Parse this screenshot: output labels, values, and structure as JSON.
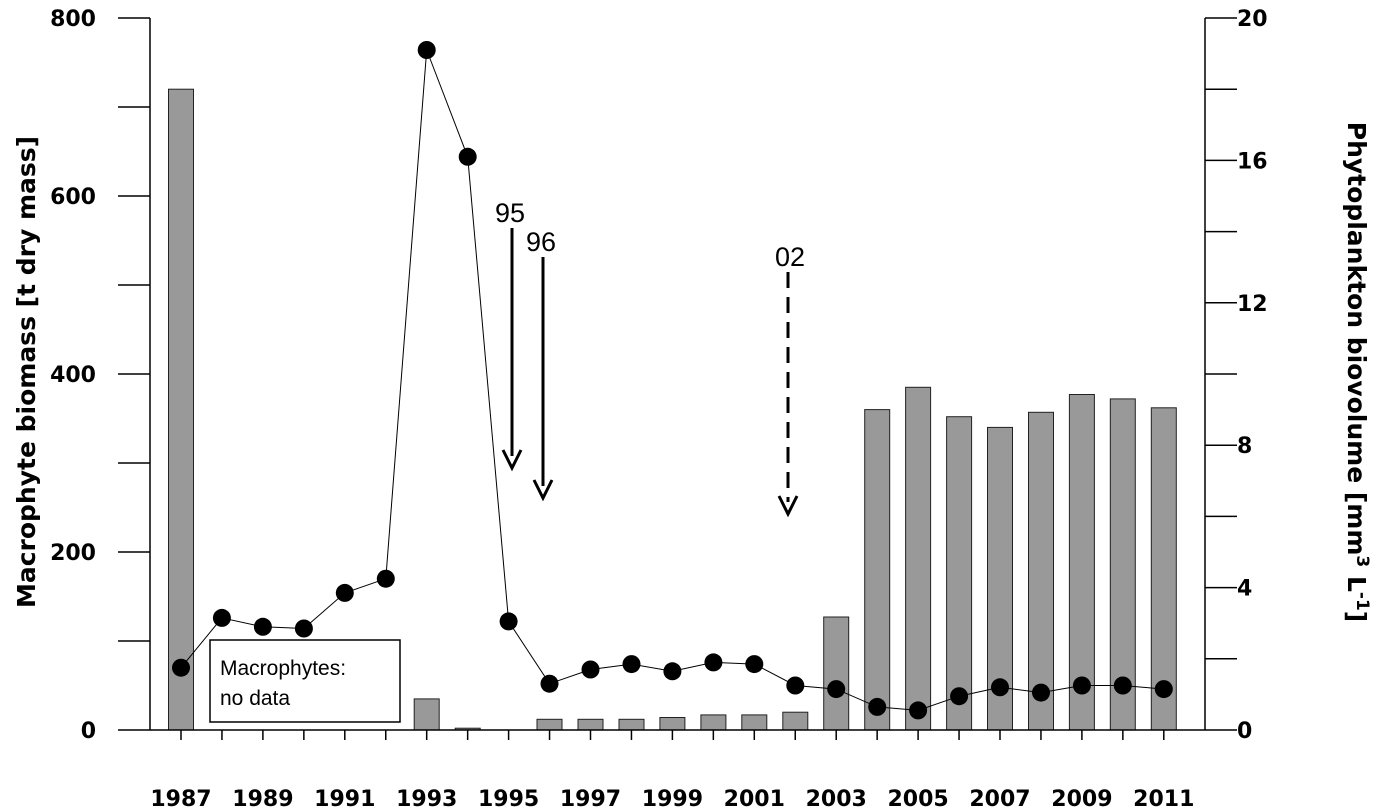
{
  "chart_data": {
    "type": "bar",
    "categories": [
      "1987",
      "1988",
      "1989",
      "1990",
      "1991",
      "1992",
      "1993",
      "1994",
      "1995",
      "1996",
      "1997",
      "1998",
      "1999",
      "2000",
      "2001",
      "2002",
      "2003",
      "2004",
      "2005",
      "2006",
      "2007",
      "2008",
      "2009",
      "2010",
      "2011"
    ],
    "x_tick_labels": [
      "1987",
      "1989",
      "1991",
      "1993",
      "1995",
      "1997",
      "1999",
      "2001",
      "2003",
      "2005",
      "2007",
      "2009",
      "2011"
    ],
    "ylabel": "Macrophyte biomass [t dry mass]",
    "y2label_main": "Phytoplankton biovolume [mm",
    "y2label_sup1": "3",
    "y2label_mid": " L",
    "y2label_sup2": "-1",
    "y2label_end": "]",
    "ylim": [
      0,
      800
    ],
    "y_ticks": [
      0,
      200,
      400,
      600,
      800
    ],
    "y2lim": [
      0,
      20
    ],
    "y2_ticks": [
      0,
      4,
      8,
      12,
      16,
      20
    ],
    "grid": false,
    "series": [
      {
        "type": "bar",
        "axis": "left",
        "values": [
          720,
          null,
          null,
          null,
          null,
          null,
          35,
          2,
          0,
          12,
          12,
          12,
          14,
          17,
          17,
          20,
          127,
          360,
          385,
          352,
          340,
          357,
          377,
          372,
          362
        ]
      },
      {
        "type": "line",
        "axis": "right",
        "values": [
          1.75,
          3.15,
          2.9,
          2.85,
          3.85,
          4.25,
          19.1,
          16.1,
          3.05,
          1.3,
          1.7,
          1.85,
          1.65,
          1.9,
          1.85,
          1.25,
          1.15,
          0.65,
          0.55,
          0.95,
          1.2,
          1.05,
          1.25,
          1.25,
          1.15
        ]
      }
    ],
    "annotations": [
      {
        "label": "95",
        "year": "1995",
        "style": "solid"
      },
      {
        "label": "96",
        "year": "1996",
        "style": "solid"
      },
      {
        "label": "02",
        "year": "2002",
        "style": "dashed"
      }
    ],
    "note_box": {
      "line1": "Macrophytes:",
      "line2": "no data"
    }
  }
}
